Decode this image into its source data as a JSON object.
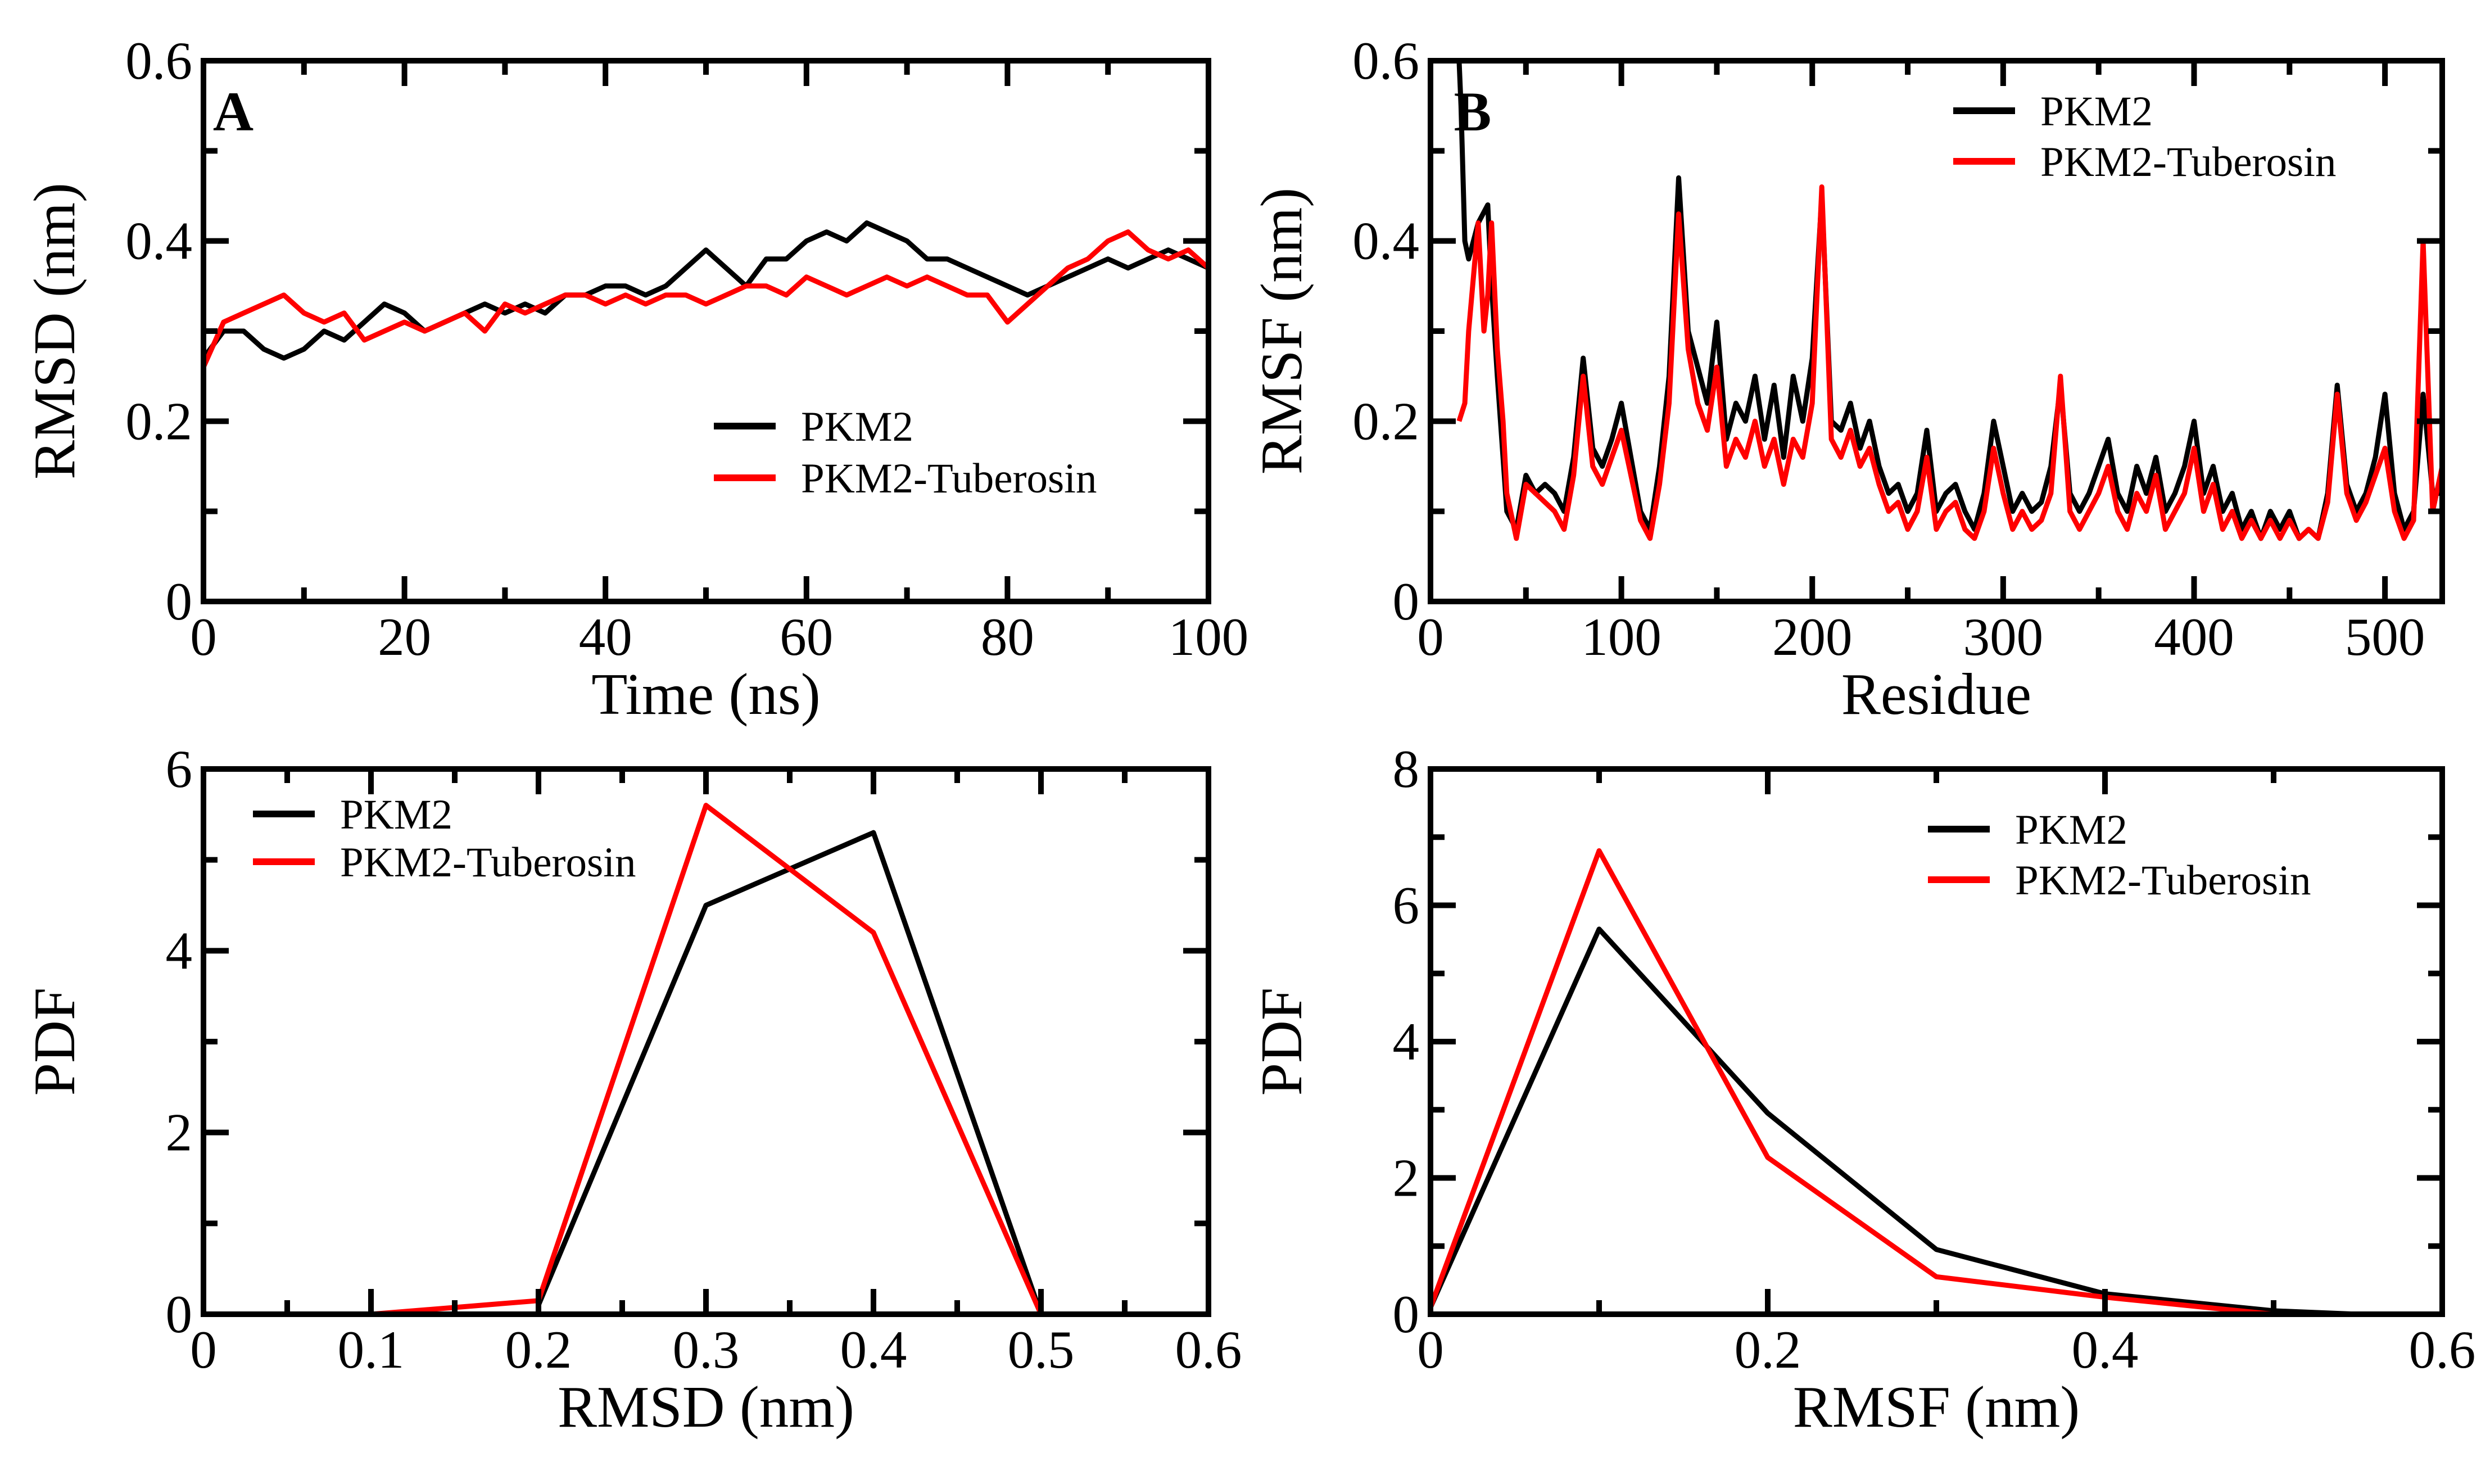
{
  "colors": {
    "PKM2": "#000000",
    "PKM2-Tuberosin": "#ff0000",
    "axes": "#000000",
    "background": "#ffffff"
  },
  "chart_data": [
    {
      "id": "A",
      "type": "line",
      "panel_letter": "A",
      "title": "",
      "xlabel": "Time (ns)",
      "ylabel": "RMSD (nm)",
      "xlim": [
        0,
        100
      ],
      "ylim": [
        0,
        0.6
      ],
      "xticks": [
        0,
        20,
        40,
        60,
        80,
        100
      ],
      "yticks": [
        0,
        0.2,
        0.4,
        0.6
      ],
      "xtick_labels": [
        "0",
        "20",
        "40",
        "60",
        "80",
        "100"
      ],
      "ytick_labels": [
        "0",
        "0.2",
        "0.4",
        "0.6"
      ],
      "legend_position": "lower-right",
      "series": [
        {
          "name": "PKM2",
          "color": "#000000",
          "x": [
            0,
            2,
            4,
            6,
            8,
            10,
            12,
            14,
            16,
            18,
            20,
            22,
            24,
            26,
            28,
            30,
            32,
            34,
            36,
            38,
            40,
            42,
            44,
            46,
            48,
            50,
            52,
            54,
            56,
            58,
            60,
            62,
            64,
            66,
            68,
            70,
            72,
            74,
            76,
            78,
            80,
            82,
            84,
            86,
            88,
            90,
            92,
            94,
            96,
            98,
            100
          ],
          "y": [
            0.27,
            0.3,
            0.3,
            0.28,
            0.27,
            0.28,
            0.3,
            0.29,
            0.31,
            0.33,
            0.32,
            0.3,
            0.31,
            0.32,
            0.33,
            0.32,
            0.33,
            0.32,
            0.34,
            0.34,
            0.35,
            0.35,
            0.34,
            0.35,
            0.37,
            0.39,
            0.37,
            0.35,
            0.38,
            0.38,
            0.4,
            0.41,
            0.4,
            0.42,
            0.41,
            0.4,
            0.38,
            0.38,
            0.37,
            0.36,
            0.35,
            0.34,
            0.35,
            0.36,
            0.37,
            0.38,
            0.37,
            0.38,
            0.39,
            0.38,
            0.37
          ]
        },
        {
          "name": "PKM2-Tuberosin",
          "color": "#ff0000",
          "x": [
            0,
            2,
            4,
            6,
            8,
            10,
            12,
            14,
            16,
            18,
            20,
            22,
            24,
            26,
            28,
            30,
            32,
            34,
            36,
            38,
            40,
            42,
            44,
            46,
            48,
            50,
            52,
            54,
            56,
            58,
            60,
            62,
            64,
            66,
            68,
            70,
            72,
            74,
            76,
            78,
            80,
            82,
            84,
            86,
            88,
            90,
            92,
            94,
            96,
            98,
            100
          ],
          "y": [
            0.26,
            0.31,
            0.32,
            0.33,
            0.34,
            0.32,
            0.31,
            0.32,
            0.29,
            0.3,
            0.31,
            0.3,
            0.31,
            0.32,
            0.3,
            0.33,
            0.32,
            0.33,
            0.34,
            0.34,
            0.33,
            0.34,
            0.33,
            0.34,
            0.34,
            0.33,
            0.34,
            0.35,
            0.35,
            0.34,
            0.36,
            0.35,
            0.34,
            0.35,
            0.36,
            0.35,
            0.36,
            0.35,
            0.34,
            0.34,
            0.31,
            0.33,
            0.35,
            0.37,
            0.38,
            0.4,
            0.41,
            0.39,
            0.38,
            0.39,
            0.37
          ]
        }
      ]
    },
    {
      "id": "B",
      "type": "line",
      "panel_letter": "B",
      "title": "",
      "xlabel": "Residue",
      "ylabel": "RMSF (nm)",
      "xlim": [
        0,
        530
      ],
      "ylim": [
        0,
        0.6
      ],
      "xticks": [
        0,
        100,
        200,
        300,
        400,
        500
      ],
      "yticks": [
        0,
        0.2,
        0.4,
        0.6
      ],
      "xtick_labels": [
        "0",
        "100",
        "200",
        "300",
        "400",
        "500"
      ],
      "ytick_labels": [
        "0",
        "0.2",
        "0.4",
        "0.6"
      ],
      "legend_position": "top-right",
      "series": [
        {
          "name": "PKM2",
          "color": "#000000",
          "x": [
            15,
            16,
            18,
            20,
            25,
            30,
            32,
            35,
            40,
            45,
            50,
            55,
            60,
            65,
            70,
            75,
            80,
            85,
            90,
            95,
            100,
            105,
            110,
            115,
            120,
            125,
            130,
            135,
            140,
            145,
            150,
            155,
            160,
            165,
            170,
            175,
            180,
            185,
            190,
            195,
            200,
            205,
            210,
            215,
            220,
            225,
            230,
            235,
            240,
            245,
            250,
            255,
            260,
            265,
            270,
            275,
            280,
            285,
            290,
            295,
            300,
            305,
            310,
            315,
            320,
            325,
            330,
            335,
            340,
            345,
            350,
            355,
            360,
            365,
            370,
            375,
            380,
            385,
            390,
            395,
            400,
            405,
            410,
            415,
            420,
            425,
            430,
            435,
            440,
            445,
            450,
            455,
            460,
            465,
            470,
            475,
            480,
            485,
            490,
            495,
            500,
            505,
            510,
            515,
            520,
            525,
            530
          ],
          "y": [
            0.6,
            0.55,
            0.4,
            0.38,
            0.42,
            0.44,
            0.35,
            0.25,
            0.1,
            0.08,
            0.14,
            0.12,
            0.13,
            0.12,
            0.1,
            0.16,
            0.27,
            0.17,
            0.15,
            0.18,
            0.22,
            0.16,
            0.1,
            0.08,
            0.15,
            0.25,
            0.47,
            0.3,
            0.26,
            0.22,
            0.31,
            0.18,
            0.22,
            0.2,
            0.25,
            0.18,
            0.24,
            0.16,
            0.25,
            0.2,
            0.27,
            0.45,
            0.2,
            0.19,
            0.22,
            0.17,
            0.2,
            0.15,
            0.12,
            0.13,
            0.1,
            0.12,
            0.19,
            0.1,
            0.12,
            0.13,
            0.1,
            0.08,
            0.12,
            0.2,
            0.15,
            0.1,
            0.12,
            0.1,
            0.11,
            0.15,
            0.24,
            0.12,
            0.1,
            0.12,
            0.15,
            0.18,
            0.12,
            0.1,
            0.15,
            0.12,
            0.16,
            0.1,
            0.12,
            0.15,
            0.2,
            0.12,
            0.15,
            0.1,
            0.12,
            0.08,
            0.1,
            0.07,
            0.1,
            0.08,
            0.1,
            0.07,
            0.08,
            0.07,
            0.12,
            0.24,
            0.13,
            0.1,
            0.12,
            0.16,
            0.23,
            0.12,
            0.08,
            0.1,
            0.23,
            0.12,
            0.12
          ]
        },
        {
          "name": "PKM2-Tuberosin",
          "color": "#ff0000",
          "x": [
            15,
            18,
            20,
            25,
            28,
            30,
            32,
            35,
            38,
            40,
            45,
            50,
            55,
            60,
            65,
            70,
            75,
            80,
            85,
            90,
            95,
            100,
            105,
            110,
            115,
            120,
            125,
            130,
            135,
            140,
            145,
            150,
            155,
            160,
            165,
            170,
            175,
            180,
            185,
            190,
            195,
            200,
            205,
            210,
            215,
            220,
            225,
            230,
            235,
            240,
            245,
            250,
            255,
            260,
            265,
            270,
            275,
            280,
            285,
            290,
            295,
            300,
            305,
            310,
            315,
            320,
            325,
            330,
            335,
            340,
            345,
            350,
            355,
            360,
            365,
            370,
            375,
            380,
            385,
            390,
            395,
            400,
            405,
            410,
            415,
            420,
            425,
            430,
            435,
            440,
            445,
            450,
            455,
            460,
            465,
            470,
            475,
            480,
            485,
            490,
            495,
            500,
            505,
            510,
            515,
            520,
            525,
            530
          ],
          "y": [
            0.2,
            0.22,
            0.3,
            0.42,
            0.3,
            0.34,
            0.42,
            0.28,
            0.2,
            0.12,
            0.07,
            0.13,
            0.12,
            0.11,
            0.1,
            0.08,
            0.14,
            0.25,
            0.15,
            0.13,
            0.16,
            0.19,
            0.14,
            0.09,
            0.07,
            0.13,
            0.22,
            0.43,
            0.28,
            0.22,
            0.19,
            0.26,
            0.15,
            0.18,
            0.16,
            0.2,
            0.15,
            0.18,
            0.13,
            0.18,
            0.16,
            0.22,
            0.46,
            0.18,
            0.16,
            0.19,
            0.15,
            0.17,
            0.13,
            0.1,
            0.11,
            0.08,
            0.1,
            0.16,
            0.08,
            0.1,
            0.11,
            0.08,
            0.07,
            0.1,
            0.17,
            0.12,
            0.08,
            0.1,
            0.08,
            0.09,
            0.12,
            0.25,
            0.1,
            0.08,
            0.1,
            0.12,
            0.15,
            0.1,
            0.08,
            0.12,
            0.1,
            0.14,
            0.08,
            0.1,
            0.12,
            0.17,
            0.1,
            0.13,
            0.08,
            0.1,
            0.07,
            0.09,
            0.07,
            0.09,
            0.07,
            0.09,
            0.07,
            0.08,
            0.07,
            0.11,
            0.23,
            0.12,
            0.09,
            0.11,
            0.14,
            0.17,
            0.1,
            0.07,
            0.09,
            0.4,
            0.1,
            0.15
          ]
        }
      ]
    },
    {
      "id": "C",
      "type": "line",
      "panel_letter": "",
      "title": "",
      "xlabel": "RMSD (nm)",
      "ylabel": "PDF",
      "xlim": [
        0,
        0.6
      ],
      "ylim": [
        0,
        6
      ],
      "xticks": [
        0,
        0.1,
        0.2,
        0.3,
        0.4,
        0.5,
        0.6
      ],
      "yticks": [
        0,
        2,
        4,
        6
      ],
      "xtick_labels": [
        "0",
        "0.1",
        "0.2",
        "0.3",
        "0.4",
        "0.5",
        "0.6"
      ],
      "ytick_labels": [
        "0",
        "2",
        "4",
        "6"
      ],
      "legend_position": "top-left",
      "series": [
        {
          "name": "PKM2",
          "color": "#000000",
          "x": [
            0.2,
            0.3,
            0.4,
            0.5
          ],
          "y": [
            0.1,
            4.5,
            5.3,
            0.0
          ]
        },
        {
          "name": "PKM2-Tuberosin",
          "color": "#ff0000",
          "x": [
            0.1,
            0.2,
            0.3,
            0.4,
            0.5
          ],
          "y": [
            0.0,
            0.15,
            5.6,
            4.2,
            0.0
          ]
        }
      ]
    },
    {
      "id": "D",
      "type": "line",
      "panel_letter": "",
      "title": "",
      "xlabel": "RMSF (nm)",
      "ylabel": "PDF",
      "xlim": [
        0,
        0.6
      ],
      "ylim": [
        0,
        8
      ],
      "xticks": [
        0,
        0.2,
        0.4,
        0.6
      ],
      "yticks": [
        0,
        2,
        4,
        6,
        8
      ],
      "xtick_labels": [
        "0",
        "0.2",
        "0.4",
        "0.6"
      ],
      "ytick_labels": [
        "0",
        "2",
        "4",
        "6",
        "8"
      ],
      "legend_position": "top-right",
      "series": [
        {
          "name": "PKM2",
          "color": "#000000",
          "x": [
            0,
            0.1,
            0.2,
            0.3,
            0.4,
            0.5,
            0.55
          ],
          "y": [
            0.1,
            5.65,
            2.95,
            0.95,
            0.3,
            0.05,
            0.0
          ]
        },
        {
          "name": "PKM2-Tuberosin",
          "color": "#ff0000",
          "x": [
            0,
            0.1,
            0.2,
            0.3,
            0.4,
            0.5
          ],
          "y": [
            0.1,
            6.8,
            2.3,
            0.55,
            0.25,
            0.0
          ]
        }
      ]
    }
  ]
}
